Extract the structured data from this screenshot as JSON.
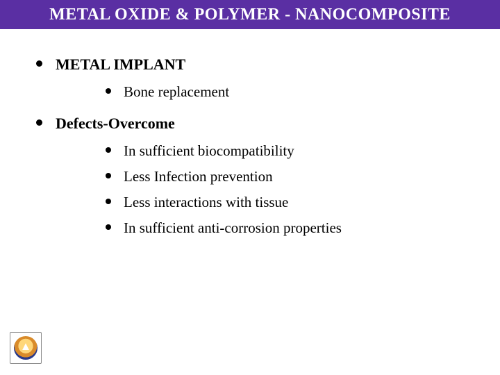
{
  "colors": {
    "title_bg": "#5a2fa3",
    "title_text": "#ffffff",
    "body_text": "#000000",
    "bullet": "#000000",
    "slide_bg": "#ffffff"
  },
  "typography": {
    "title_fontsize": 24,
    "section_fontsize": 22,
    "item_fontsize": 21,
    "font_family": "Times New Roman"
  },
  "title": "METAL OXIDE & POLYMER - NANOCOMPOSITE",
  "sections": [
    {
      "label": "METAL IMPLANT",
      "items": [
        "Bone replacement"
      ]
    },
    {
      "label": "Defects-Overcome",
      "items": [
        "In  sufficient biocompatibility",
        "Less Infection prevention",
        "Less interactions with tissue",
        "In  sufficient anti-corrosion properties"
      ]
    }
  ],
  "logo": {
    "name": "institution-emblem"
  }
}
